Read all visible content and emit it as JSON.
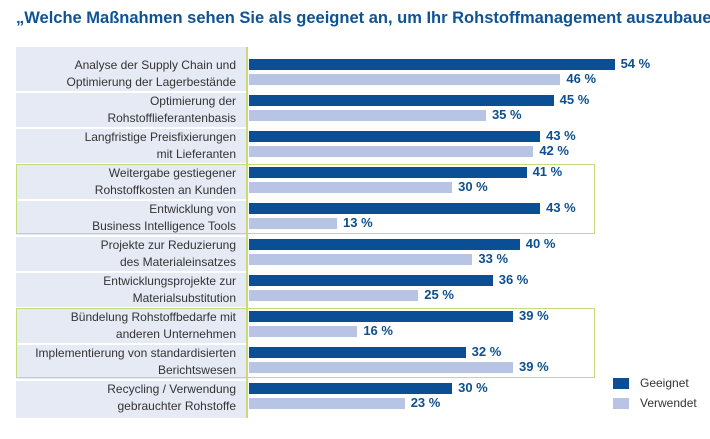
{
  "chart_data": {
    "type": "bar",
    "orientation": "horizontal",
    "title": "„Welche Maßnahmen sehen Sie als geeignet an, um Ihr Rohstoffmanagement auszubauen?“",
    "categories": [
      [
        "Analyse der Supply Chain und",
        "Optimierung der Lagerbestände"
      ],
      [
        "Optimierung der",
        "Rohstofflieferantenbasis"
      ],
      [
        "Langfristige Preisfixierungen",
        "mit Lieferanten"
      ],
      [
        "Weitergabe gestiegener",
        "Rohstoffkosten an Kunden"
      ],
      [
        "Entwicklung von",
        "Business Intelligence Tools"
      ],
      [
        "Projekte zur Reduzierung",
        "des Materialeinsatzes"
      ],
      [
        "Entwicklungsprojekte zur",
        "Materialsubstitution"
      ],
      [
        "Bündelung Rohstoffbedarfe mit",
        "anderen Unternehmen"
      ],
      [
        "Implementierung von standardisierten",
        "Berichtswesen"
      ],
      [
        "Recycling / Verwendung",
        "gebrauchter Rohstoffe"
      ]
    ],
    "series": [
      {
        "name": "Geeignet",
        "color": "#0a4f96",
        "values": [
          54,
          45,
          43,
          41,
          43,
          40,
          36,
          39,
          32,
          30
        ]
      },
      {
        "name": "Verwendet",
        "color": "#b8c4e4",
        "values": [
          46,
          35,
          42,
          30,
          13,
          33,
          25,
          16,
          39,
          23
        ]
      }
    ],
    "unit": "%",
    "highlighted_groups": [
      [
        3,
        4
      ],
      [
        7,
        8
      ]
    ],
    "xlim": [
      0,
      60
    ],
    "grid": false,
    "legend": "bottom-right"
  }
}
